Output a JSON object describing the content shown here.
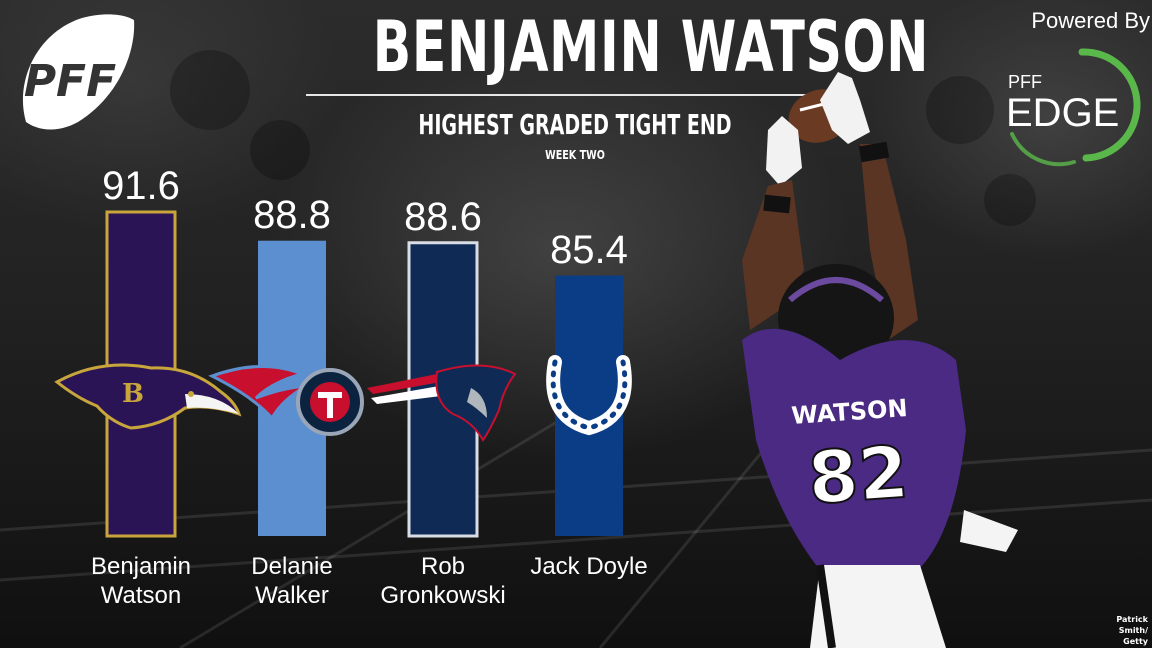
{
  "header": {
    "title": "BENJAMIN WATSON",
    "subtitle": "HIGHEST GRADED TIGHT END",
    "week": "WEEK TWO"
  },
  "brand": {
    "logo_icon": "pff-football-logo-icon",
    "logo_text": "PFF",
    "powered_by": "Powered By",
    "edge_small": "PFF",
    "edge_large": "EDGE",
    "edge_ring_color": "#5ab84b"
  },
  "chart_data": {
    "type": "bar",
    "title": "HIGHEST GRADED TIGHT END",
    "subtitle": "WEEK TWO",
    "categories": [
      "Benjamin Watson",
      "Delanie Walker",
      "Rob Gronkowski",
      "Jack Doyle"
    ],
    "category_lines": [
      [
        "Benjamin",
        "Watson"
      ],
      [
        "Delanie",
        "Walker"
      ],
      [
        "Rob",
        "Gronkowski"
      ],
      [
        "Jack Doyle"
      ]
    ],
    "values": [
      91.6,
      88.8,
      88.6,
      85.4
    ],
    "value_labels": [
      "91.6",
      "88.8",
      "88.6",
      "85.4"
    ],
    "bar_colors": [
      "#2b1456",
      "#5b8fd0",
      "#0e2a55",
      "#0b3c86"
    ],
    "bar_outline_colors": [
      "#c9a63c",
      "none",
      "#d9dde6",
      "none"
    ],
    "team_icons": [
      "ravens-logo-icon",
      "titans-logo-icon",
      "patriots-logo-icon",
      "colts-horseshoe-icon"
    ],
    "xlabel": "",
    "ylabel": "",
    "grid": false,
    "legend": "none"
  },
  "photo": {
    "subject_icon": "ravens-player-catching-icon",
    "jersey_name": "WATSON",
    "jersey_number": "82",
    "credit_line1": "Patrick Smith/",
    "credit_line2": "Getty Images"
  }
}
